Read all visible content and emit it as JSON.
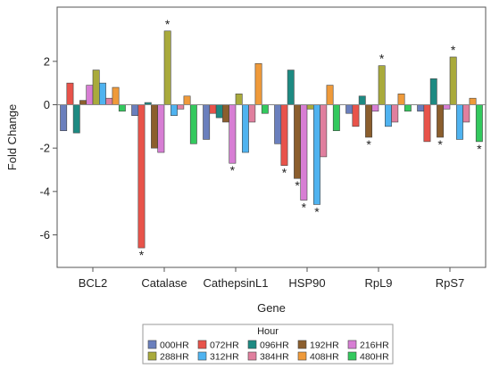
{
  "chart_data": {
    "type": "bar",
    "xlabel": "Gene",
    "ylabel": "Fold Change",
    "ylim": [
      -7.5,
      4.5
    ],
    "yticks": [
      -6,
      -4,
      -2,
      0,
      2
    ],
    "ytick_labels": [
      "-6",
      "-4",
      "-2",
      "0",
      "2"
    ],
    "grid": false,
    "legend": {
      "title": "Hour",
      "placement": "bottom"
    },
    "categories": [
      "BCL2",
      "Catalase",
      "CathepsinL1",
      "HSP90",
      "RpL9",
      "RpS7"
    ],
    "significance_marker": "*",
    "series": [
      {
        "name": "000HR",
        "color": "#6a7fbd",
        "values": [
          -1.2,
          -0.5,
          -1.6,
          -1.8,
          -0.4,
          -0.3
        ],
        "significant": [
          false,
          false,
          false,
          false,
          false,
          false
        ]
      },
      {
        "name": "072HR",
        "color": "#e8534a",
        "values": [
          1.0,
          -6.6,
          -0.4,
          -2.8,
          -1.0,
          -1.7
        ],
        "significant": [
          false,
          true,
          false,
          true,
          false,
          false
        ]
      },
      {
        "name": "096HR",
        "color": "#1d8a82",
        "values": [
          -1.3,
          0.1,
          -0.6,
          1.6,
          0.4,
          1.2
        ],
        "significant": [
          false,
          false,
          false,
          false,
          false,
          false
        ]
      },
      {
        "name": "192HR",
        "color": "#8b5e2d",
        "values": [
          0.2,
          -2.0,
          -0.8,
          -3.4,
          -1.5,
          -1.5
        ],
        "significant": [
          false,
          false,
          false,
          true,
          true,
          true
        ]
      },
      {
        "name": "216HR",
        "color": "#d77ed4",
        "values": [
          0.9,
          -2.2,
          -2.7,
          -4.4,
          -0.3,
          -0.2
        ],
        "significant": [
          false,
          false,
          true,
          true,
          false,
          false
        ]
      },
      {
        "name": "288HR",
        "color": "#a9aa3c",
        "values": [
          1.6,
          3.4,
          0.5,
          -0.2,
          1.8,
          2.2
        ],
        "significant": [
          false,
          true,
          false,
          false,
          true,
          true
        ]
      },
      {
        "name": "312HR",
        "color": "#4fb3f0",
        "values": [
          1.0,
          -0.5,
          -2.2,
          -4.6,
          -1.0,
          -1.6
        ],
        "significant": [
          false,
          false,
          false,
          true,
          false,
          false
        ]
      },
      {
        "name": "384HR",
        "color": "#e07f9e",
        "values": [
          0.3,
          -0.2,
          -0.8,
          -2.4,
          -0.8,
          -0.8
        ],
        "significant": [
          false,
          false,
          false,
          false,
          false,
          false
        ]
      },
      {
        "name": "408HR",
        "color": "#ef9a3a",
        "values": [
          0.8,
          0.4,
          1.9,
          0.9,
          0.5,
          0.3
        ],
        "significant": [
          false,
          false,
          false,
          false,
          false,
          false
        ]
      },
      {
        "name": "480HR",
        "color": "#33c95e",
        "values": [
          -0.3,
          -1.8,
          -0.4,
          -1.2,
          -0.3,
          -1.7
        ],
        "significant": [
          false,
          false,
          false,
          false,
          false,
          true
        ]
      }
    ]
  }
}
